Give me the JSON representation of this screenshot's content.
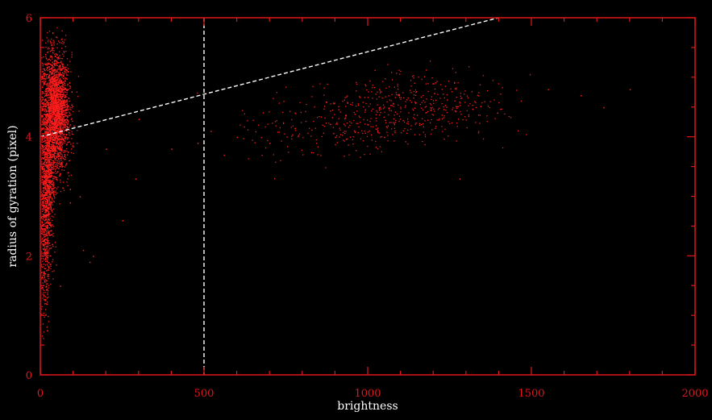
{
  "colors": {
    "background": "#000000",
    "axis": "#e0161b",
    "points": "#ff1c1c",
    "guides": "#ffffff",
    "axis_title": "#ffffff"
  },
  "chart_data": {
    "type": "scatter",
    "title": "",
    "xlabel": "brightness",
    "ylabel": "radius of gyration (pixel)",
    "xlim": [
      0,
      2000
    ],
    "ylim": [
      0,
      6
    ],
    "x_ticks": [
      0,
      500,
      1000,
      1500,
      2000
    ],
    "x_tick_labels": [
      "0",
      "500",
      "1000",
      "1500",
      "2000"
    ],
    "y_ticks": [
      0,
      2,
      4,
      6
    ],
    "y_tick_labels": [
      "0",
      "2",
      "4",
      "6"
    ],
    "grid": false,
    "series": [
      {
        "style": "dots",
        "clusters": [
          {
            "x_center": 45,
            "x_spread": 20,
            "y_center": 4.4,
            "y_spread": 0.5,
            "count": 2600
          },
          {
            "x_center": 20,
            "x_spread": 10,
            "y_center": 3.1,
            "y_spread": 0.6,
            "count": 900
          },
          {
            "x_center": 15,
            "x_spread": 8,
            "y_center": 1.9,
            "y_spread": 0.5,
            "count": 200
          },
          {
            "x_center": 1150,
            "x_spread": 140,
            "y_center": 4.55,
            "y_spread": 0.25,
            "count": 380
          },
          {
            "x_center": 950,
            "x_spread": 150,
            "y_center": 4.15,
            "y_spread": 0.22,
            "count": 180
          },
          {
            "x_center": 750,
            "x_spread": 80,
            "y_center": 4.1,
            "y_spread": 0.3,
            "count": 50
          }
        ],
        "sparse_points": [
          [
            160,
            2.0
          ],
          [
            150,
            1.9
          ],
          [
            130,
            2.1
          ],
          [
            200,
            3.8
          ],
          [
            290,
            3.3
          ],
          [
            400,
            3.8
          ],
          [
            560,
            3.7
          ],
          [
            1550,
            4.8
          ],
          [
            1720,
            4.5
          ],
          [
            1800,
            4.8
          ],
          [
            1650,
            4.7
          ],
          [
            1050,
            4.0
          ],
          [
            1200,
            4.9
          ],
          [
            1280,
            3.3
          ],
          [
            520,
            4.1
          ],
          [
            600,
            4.0
          ],
          [
            700,
            3.9
          ],
          [
            900,
            4.0
          ],
          [
            300,
            4.3
          ],
          [
            120,
            3.0
          ],
          [
            90,
            2.9
          ],
          [
            60,
            1.5
          ],
          [
            250,
            2.6
          ],
          [
            480,
            3.9
          ]
        ]
      }
    ],
    "guides": [
      {
        "kind": "vertical",
        "x": 500
      },
      {
        "kind": "line",
        "x1": 0,
        "y1": 4.0,
        "x2": 1400,
        "y2": 6.0
      }
    ]
  }
}
